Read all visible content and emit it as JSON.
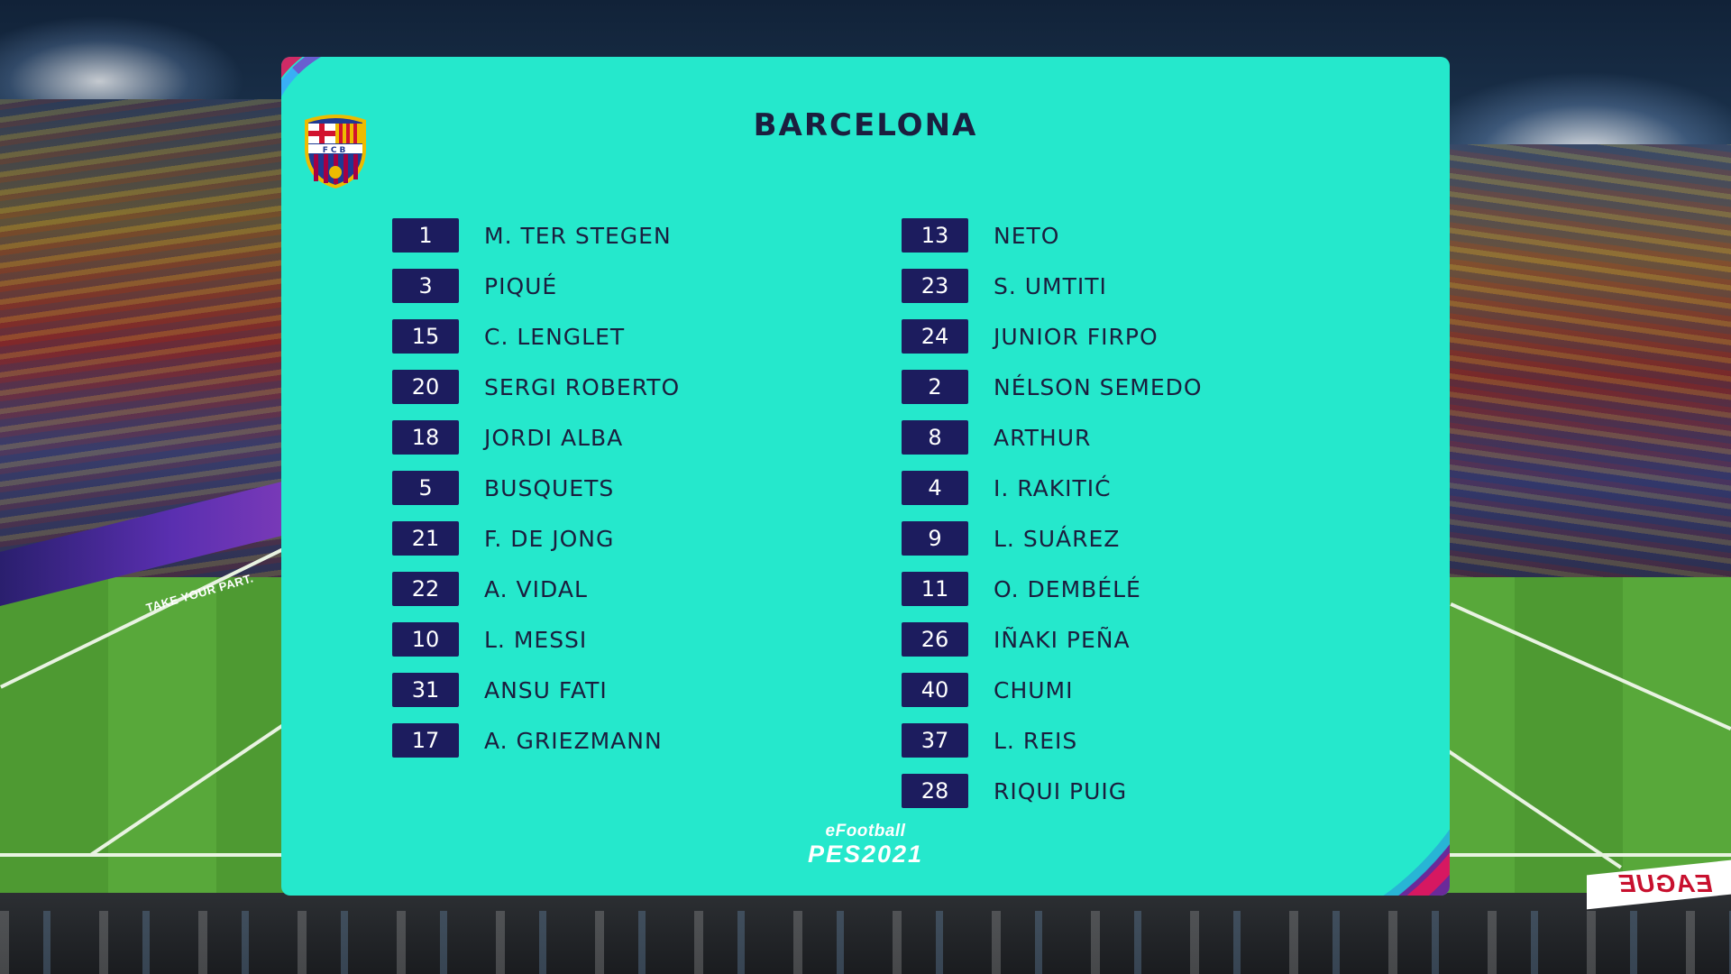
{
  "team": {
    "name": "BARCELONA",
    "crest_text": "FCB",
    "colors": {
      "blue": "#1f3a93",
      "red": "#a50044",
      "gold": "#edbb00"
    }
  },
  "theme": {
    "panel": "#25e8cc",
    "number_box": "#1c1c5e",
    "text": "#1b1e3e"
  },
  "starters": [
    {
      "number": "1",
      "name": "M. TER STEGEN"
    },
    {
      "number": "3",
      "name": "PIQUÉ"
    },
    {
      "number": "15",
      "name": "C. LENGLET"
    },
    {
      "number": "20",
      "name": "SERGI ROBERTO"
    },
    {
      "number": "18",
      "name": "JORDI ALBA"
    },
    {
      "number": "5",
      "name": "BUSQUETS"
    },
    {
      "number": "21",
      "name": "F. DE JONG"
    },
    {
      "number": "22",
      "name": "A. VIDAL"
    },
    {
      "number": "10",
      "name": "L. MESSI"
    },
    {
      "number": "31",
      "name": "ANSU FATI"
    },
    {
      "number": "17",
      "name": "A. GRIEZMANN"
    }
  ],
  "substitutes": [
    {
      "number": "13",
      "name": "NETO"
    },
    {
      "number": "23",
      "name": "S. UMTITI"
    },
    {
      "number": "24",
      "name": "JUNIOR FIRPO"
    },
    {
      "number": "2",
      "name": "NÉLSON SEMEDO"
    },
    {
      "number": "8",
      "name": "ARTHUR"
    },
    {
      "number": "4",
      "name": "I. RAKITIĆ"
    },
    {
      "number": "9",
      "name": "L. SUÁREZ"
    },
    {
      "number": "11",
      "name": "O. DEMBÉLÉ"
    },
    {
      "number": "26",
      "name": "IÑAKI PEÑA"
    },
    {
      "number": "40",
      "name": "CHUMI"
    },
    {
      "number": "37",
      "name": "L. REIS"
    },
    {
      "number": "28",
      "name": "RIQUI PUIG"
    }
  ],
  "logo": {
    "top": "eFootball",
    "bottom": "PES2021"
  },
  "stadium": {
    "board_left": "TAKE YOUR PART.",
    "board_right": "EAGUE"
  }
}
